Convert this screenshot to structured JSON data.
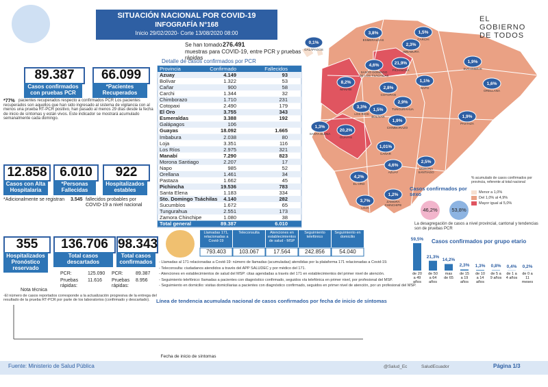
{
  "header": {
    "title": "SITUACIÓN NACIONAL POR COVID-19",
    "subtitle": "INFOGRAFÍA N°168",
    "period": "Inicio 29/02/2020- Corte 13/08/2020 08:00",
    "logo": "EL GOBIERNO DE TODOS"
  },
  "samples": {
    "text_before": "Se han tomado",
    "value": "276.491",
    "text_after": "muestras para COVID-19, entre PCR y pruebas rápidas"
  },
  "stats": [
    {
      "value": "89.387",
      "label": "Casos confirmados con pruebas PCR"
    },
    {
      "value": "66.099",
      "label": "*Pacientes Recuperados"
    },
    {
      "value": "12.858",
      "label": "Casos con Alta Hospitalaria"
    },
    {
      "value": "6.010",
      "label": "*Personas Fallecidas"
    },
    {
      "value": "922",
      "label": "Hospitalizados estables"
    },
    {
      "value": "355",
      "label": "Hospitalizados Pronóstico reservado"
    },
    {
      "value": "136.706",
      "label": "Total casos descartados"
    },
    {
      "value": "98.343",
      "label": "Total casos confirmados"
    }
  ],
  "recovered_note": {
    "bold": "*77%",
    "text": "pacientes recuperados respecto a confirmados PCR Los pacientes recuperados son aquellos que han sido ingresado al sistema de vigilancia con al menos una prueba RT-PCR positivo, han pasado al menos 29 días desde la fecha de inicio de síntomas y están vivos. Este indicador se mostrará acumulado semanalmente cada domingo."
  },
  "deaths_note": {
    "before": "*Adicionalmente se registran",
    "value": "3.545",
    "after": "fallecidos probables por COVID-19 a nivel nacional"
  },
  "discarded_detail": [
    {
      "label": "PCR:",
      "value": "125.090"
    },
    {
      "label": "Pruebas rápidas:",
      "value": "11.616"
    }
  ],
  "confirmed_detail": [
    {
      "label": "PCR:",
      "value": "89.387"
    },
    {
      "label": "Pruebas rápidas:",
      "value": "8.956"
    }
  ],
  "technical_note": {
    "title": "Nota técnica",
    "text": "-El número de casos reportados corresponde a la actualización progresiva de la entrega del resultado de la prueba RT-PCR por parte de los laboratorios (confirmado y descartado)."
  },
  "province_table": {
    "title": "Detalle de casos confirmados por PCR",
    "columns": [
      "Provincia",
      "Confirmado",
      "Fallecidos"
    ],
    "rows": [
      [
        "Azuay",
        "4.149",
        "93"
      ],
      [
        "Bolívar",
        "1.322",
        "53"
      ],
      [
        "Cañar",
        "900",
        "58"
      ],
      [
        "Carchi",
        "1.344",
        "32"
      ],
      [
        "Chimborazo",
        "1.710",
        "231"
      ],
      [
        "Cotopaxi",
        "2.490",
        "179"
      ],
      [
        "El Oro",
        "3.755",
        "343"
      ],
      [
        "Esmeraldas",
        "3.388",
        "192"
      ],
      [
        "Galápagos",
        "106"
      ],
      [
        "Guayas",
        "18.092",
        "1.665"
      ],
      [
        "Imbabura",
        "2.038",
        "80"
      ],
      [
        "Loja",
        "3.351",
        "116"
      ],
      [
        "Los Ríos",
        "2.975",
        "321"
      ],
      [
        "Manabí",
        "7.290",
        "823"
      ],
      [
        "Morona Santiago",
        "2.207",
        "17"
      ],
      [
        "Napo",
        "985",
        "52"
      ],
      [
        "Orellana",
        "1.461",
        "34"
      ],
      [
        "Pastaza",
        "1.662",
        "45"
      ],
      [
        "Pichincha",
        "19.536",
        "783"
      ],
      [
        "Santa Elena",
        "1.183",
        "334"
      ],
      [
        "Sto. Domingo Tsáchilas",
        "4.140",
        "282"
      ],
      [
        "Sucumbíos",
        "1.672",
        "65"
      ],
      [
        "Tungurahua",
        "2.551",
        "173"
      ],
      [
        "Zamora Chinchipe",
        "1.080",
        "38"
      ]
    ],
    "total": [
      "Total general",
      "89.387",
      "6.010"
    ]
  },
  "calls": {
    "columns": [
      "Llamadas 171, relacionadas a Covid-19",
      "Teleconsulta",
      "Atenciones en establecimientos de salud - MSP",
      "Seguimiento telefónico",
      "Seguimiento en domicilio"
    ],
    "values": [
      "793.403",
      "103.067",
      "17.564",
      "242.856",
      "54.040"
    ]
  },
  "call_notes": [
    "- Llamadas al 171 relacionadas a Covid-19: número de llamadas (acumuladas) atendidas por la plataforma 171 relacionadas a Covid-19.",
    "- Teleconsulta: ciudadanos atendidos a través del APP SALUDEC y por médico del 171.",
    "- Atenciones en establecimientos de salud del MSP: citas agendadas a través del 171 en establecimientos del primer nivel de atención.",
    "- Seguimiento telefónico: llamadas a pacientes con diagnóstico confirmado, seguidos vía telefónica en primer nivel, por profesional del MSP.",
    "- Seguimiento en domicilio: visitas domiciliarias a pacientes con diagnóstico confirmado, seguidos en primer nivel de atención, por un profesional del MSP."
  ],
  "map": {
    "provinces": [
      {
        "name": "GALÁPAGOS",
        "pct": "0,1%"
      },
      {
        "name": "ESMERALDAS",
        "pct": "3,8%"
      },
      {
        "name": "CARCHI",
        "pct": "1,5%"
      },
      {
        "name": "IMBABURA",
        "pct": "2,3%"
      },
      {
        "name": "SUCUMBÍOS",
        "pct": "1,9%"
      },
      {
        "name": "PICHINCHA",
        "pct": "21,9%"
      },
      {
        "name": "SANTO DOMINGO DE LOS TSÁCHILAS",
        "pct": "4,6%"
      },
      {
        "name": "MANABÍ",
        "pct": "8,2%"
      },
      {
        "name": "NAPO",
        "pct": "1,1%"
      },
      {
        "name": "ORELLANA",
        "pct": "1,6%"
      },
      {
        "name": "COTOPAXI",
        "pct": "2,8%"
      },
      {
        "name": "LOS RÍOS",
        "pct": "3,3%"
      },
      {
        "name": "BOLÍVAR",
        "pct": "1,5%"
      },
      {
        "name": "TUNGURAHUA",
        "pct": "2,9%"
      },
      {
        "name": "CHIMBORAZO",
        "pct": "1,9%"
      },
      {
        "name": "PASTAZA",
        "pct": "1,9%"
      },
      {
        "name": "SANTA ELENA",
        "pct": "1,3%"
      },
      {
        "name": "GUAYAS",
        "pct": "20,2%"
      },
      {
        "name": "CAÑAR",
        "pct": "1,01%"
      },
      {
        "name": "MORONA SANTIAGO",
        "pct": "2,5%"
      },
      {
        "name": "AZUAY",
        "pct": "4,6%"
      },
      {
        "name": "EL ORO",
        "pct": "4,2%"
      },
      {
        "name": "LOJA",
        "pct": "3,7%"
      },
      {
        "name": "ZAMORA CHINCHIPE",
        "pct": "1,2%"
      }
    ],
    "legend_title": "% acumulado de casos confirmados por provincia, referente al total nacional",
    "legend": [
      {
        "label": "Menor a 1,0%",
        "color": "#f6dfcf"
      },
      {
        "label": "Del 1,0% al 4,9%",
        "color": "#eaa184"
      },
      {
        "label": "Mayor igual al 5,0%",
        "color": "#e05560"
      }
    ]
  },
  "sex": {
    "title": "Casos confirmados por sexo",
    "female": "46,2%",
    "male": "53,8%"
  },
  "disaggregation_note": "La desagregación de casos a nivel provincial, cantonal y tendencias son de pruebas PCR",
  "chart_data": {
    "type": "bar",
    "title": "Casos confirmados por grupo etario",
    "color": "#2e75b6",
    "categories": [
      "de 20 a 49 años",
      "de 50 a 64 años",
      "mas de 65",
      "de 15 a 19 años",
      "de 10 a 14 años",
      "de 5 a 9 años",
      "de 1 a 4 años",
      "de 0 a 11 meses"
    ],
    "values": [
      59.5,
      21.3,
      14.2,
      2.3,
      1.3,
      0.8,
      0.4,
      0.2
    ],
    "value_labels": [
      "59,5%",
      "21,3%",
      "14,2%",
      "2,3%",
      "1,3%",
      "0,8%",
      "0,4%",
      "0,2%"
    ]
  },
  "timeline": {
    "title": "Línea de tendencia acumulada nacional de casos confirmados por fecha de inicio de síntomas",
    "x_label": "Fecha de inicio de síntomas"
  },
  "footer": {
    "source": "Fuente: Ministerio de Salud Pública",
    "twitter": "@Salud_Ec",
    "facebook": "SaludEcuador",
    "page": "Página 1/3"
  }
}
